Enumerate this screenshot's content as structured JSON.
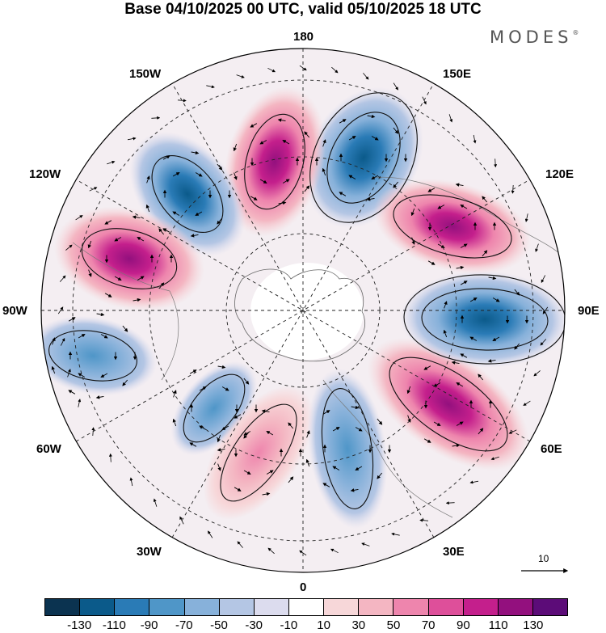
{
  "header": {
    "title": "Base 04/10/2025 00 UTC, valid 05/10/2025 18 UTC",
    "brand": "MODES",
    "brand_mark": "®"
  },
  "map": {
    "projection": "north-polar-stereographic",
    "longitude_labels": {
      "top": "180",
      "bottom": "0",
      "left": "90W",
      "right": "90E",
      "upper_left_1": "150W",
      "upper_left_2": "120W",
      "upper_right_1": "150E",
      "upper_right_2": "120E",
      "lower_left_1": "60W",
      "lower_left_2": "30W",
      "lower_right_1": "60E",
      "lower_right_2": "30E"
    },
    "reference_vector": "10",
    "anomaly_centers": [
      {
        "name": "neg-north",
        "sign": "negative",
        "longitude": "160E"
      },
      {
        "name": "pos-north",
        "sign": "positive",
        "longitude": "170W"
      },
      {
        "name": "neg-northwest",
        "sign": "negative",
        "longitude": "135W"
      },
      {
        "name": "pos-west",
        "sign": "positive",
        "longitude": "110W"
      },
      {
        "name": "neg-west",
        "sign": "negative",
        "longitude": "80W"
      },
      {
        "name": "neg-southwest",
        "sign": "negative",
        "longitude": "35W"
      },
      {
        "name": "pos-south",
        "sign": "positive",
        "longitude": "10W"
      },
      {
        "name": "neg-south",
        "sign": "negative",
        "longitude": "15E"
      },
      {
        "name": "pos-southeast",
        "sign": "positive",
        "longitude": "55E"
      },
      {
        "name": "neg-east",
        "sign": "negative",
        "longitude": "90E"
      },
      {
        "name": "pos-northeast",
        "sign": "positive",
        "longitude": "125E"
      }
    ]
  },
  "colorbar": {
    "colors": [
      "#0b3350",
      "#0b5a8a",
      "#2a7bb6",
      "#4f96c8",
      "#87b1da",
      "#b4c6e4",
      "#dcdcee",
      "#ffffff",
      "#f7d7d9",
      "#f4b6c2",
      "#ee85ad",
      "#de4f9a",
      "#c41f8c",
      "#93107e",
      "#5c0c78"
    ],
    "ticks": [
      "-130",
      "-110",
      "-90",
      "-70",
      "-50",
      "-30",
      "-10",
      "10",
      "30",
      "50",
      "70",
      "90",
      "110",
      "130"
    ]
  }
}
